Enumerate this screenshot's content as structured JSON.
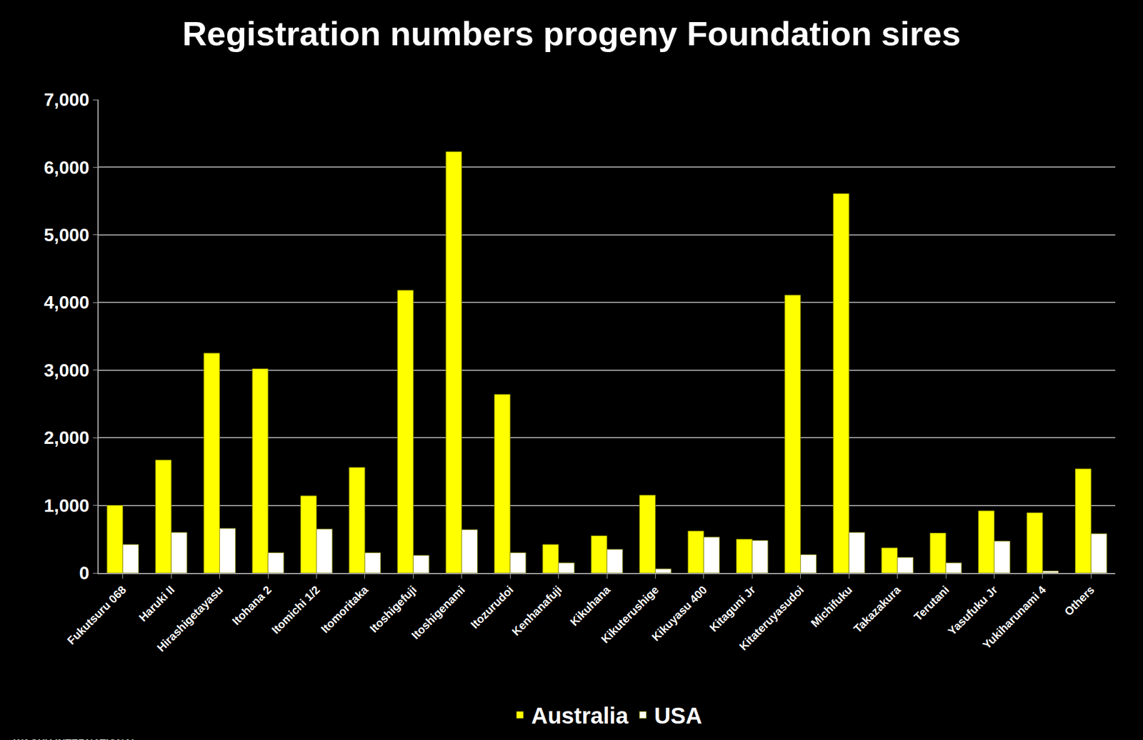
{
  "chart_data": {
    "type": "bar",
    "title": "Registration numbers progeny Foundation sires",
    "annotations": [
      "WAGYU INTERNATIONAL"
    ],
    "categories": [
      "Fukutsuru 068",
      "Haruki II",
      "Hirashigetayasu",
      "Itohana 2",
      "Itomichi 1/2",
      "Itomoritaka",
      "Itoshigefuji",
      "Itoshigenami",
      "Itozurudoi",
      "Kenhanafuji",
      "Kikuhana",
      "Kikuterushige",
      "Kikuyasu 400",
      "Kitaguni Jr",
      "Kitateruyasudoi",
      "Michifuku",
      "Takazakura",
      "Terutani",
      "Yasufuku Jr",
      "Yukiharunami 4",
      "Others"
    ],
    "series": [
      {
        "name": "Australia",
        "color": "#ffff00",
        "values": [
          1000,
          1670,
          3250,
          3020,
          1140,
          1560,
          4180,
          6230,
          2640,
          420,
          550,
          1150,
          620,
          500,
          4110,
          5610,
          370,
          590,
          920,
          890,
          1540
        ]
      },
      {
        "name": "USA",
        "color": "#ffffff",
        "values": [
          420,
          600,
          660,
          300,
          650,
          300,
          260,
          640,
          300,
          150,
          350,
          60,
          530,
          480,
          270,
          600,
          230,
          150,
          470,
          30,
          580
        ]
      }
    ],
    "ylim": [
      0,
      7000
    ],
    "yticks": [
      0,
      {
        "value": 1000,
        "label": "1,000"
      },
      {
        "value": 2000,
        "label": "2,000"
      },
      {
        "value": 3000,
        "label": "3,000"
      },
      {
        "value": 4000,
        "label": "4,000"
      },
      {
        "value": 5000,
        "label": "5,000"
      },
      {
        "value": 6000,
        "label": "6,000"
      },
      {
        "value": 7000,
        "label": "7,000"
      }
    ],
    "grid": true,
    "legend": "bottom"
  }
}
